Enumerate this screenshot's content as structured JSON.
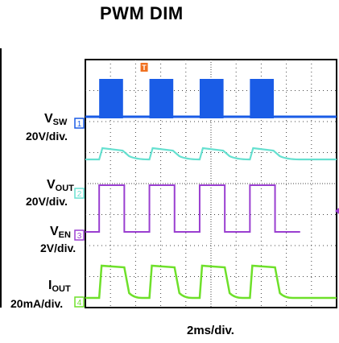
{
  "title": "PWM DIM",
  "timebase_label": "2ms/div.",
  "trigger_marker": "T",
  "channels": [
    {
      "id": "ch1",
      "marker": "1",
      "name_main": "V",
      "name_sub": "SW",
      "scale": "20V/div.",
      "color": "#1a5ce6"
    },
    {
      "id": "ch2",
      "marker": "2",
      "name_main": "V",
      "name_sub": "OUT",
      "scale": "20V/div.",
      "color": "#66e0d0"
    },
    {
      "id": "ch3",
      "marker": "3",
      "name_main": "V",
      "name_sub": "EN",
      "scale": "2V/div.",
      "color": "#9a3fd0"
    },
    {
      "id": "ch4",
      "marker": "4",
      "name_main": "I",
      "name_sub": "OUT",
      "scale": "20mA/div.",
      "color": "#6ee02a"
    }
  ],
  "chart_data": {
    "type": "line",
    "x_divisions": 10,
    "y_divisions": 8,
    "pwm_period_divisions": 2,
    "pwm_high_fraction": 0.5,
    "grid": true,
    "trigger_color": "#f07020"
  }
}
